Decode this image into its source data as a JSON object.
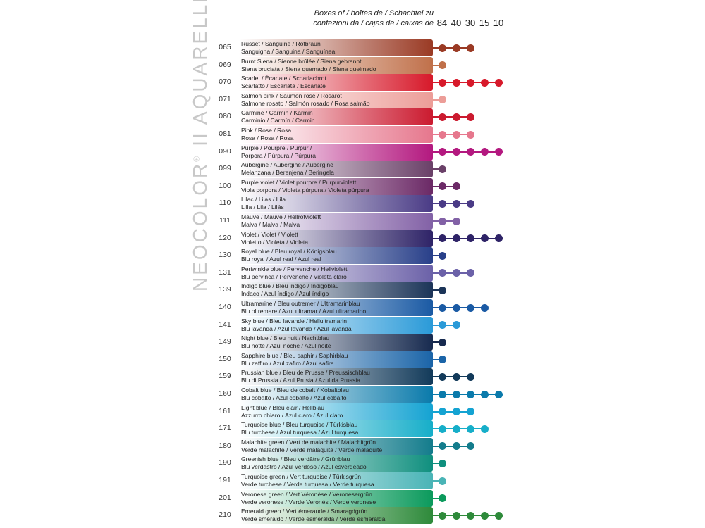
{
  "brand": {
    "name": "NEOCOLOR",
    "mark": "®",
    "suffix": "II AQUARELLE"
  },
  "header": {
    "line1": "Boxes of / boîtes de / Schachtel zu",
    "line2": "confezioni da / cajas de / caixas de"
  },
  "box_sizes": [
    "84",
    "40",
    "30",
    "15",
    "10"
  ],
  "colors": [
    {
      "code": "065",
      "line1": "Russet / Sanguine / Rotbraun",
      "line2": "Sanguigna / Sanguina / Sanguínea",
      "color": "#9a3a24",
      "dots": 3
    },
    {
      "code": "069",
      "line1": "Burnt Siena / Sienne brûlée / Siena gebrannt",
      "line2": "Siena bruciata / Siena quemado / Siena queimado",
      "color": "#c0704a",
      "dots": 1
    },
    {
      "code": "070",
      "line1": "Scarlet / Écarlate / Scharlachrot",
      "line2": "Scarlatto / Escarlata / Escarlate",
      "color": "#d7192a",
      "dots": 5
    },
    {
      "code": "071",
      "line1": "Salmon pink / Saumon rosé / Rosarot",
      "line2": "Salmone rosato / Salmón rosado / Rosa salmão",
      "color": "#ec9d98",
      "dots": 1
    },
    {
      "code": "080",
      "line1": "Carmine / Carmin / Karmin",
      "line2": "Carminio / Carmín / Carmin",
      "color": "#cb1a2f",
      "dots": 3
    },
    {
      "code": "081",
      "line1": "Pink / Rose / Rosa",
      "line2": "Rosa / Rosa / Rosa",
      "color": "#e6778d",
      "dots": 3
    },
    {
      "code": "090",
      "line1": "Purple / Pourpre / Purpur /",
      "line2": "Porpora / Púrpura / Púrpura",
      "color": "#b3187f",
      "dots": 5
    },
    {
      "code": "099",
      "line1": "Aubergine / Aubergine / Aubergine",
      "line2": "Melanzana / Berenjena / Beringela",
      "color": "#6a4068",
      "dots": 1
    },
    {
      "code": "100",
      "line1": "Purple violet / Violet pourpre / Purpurviolett",
      "line2": "Viola porpora / Violeta púrpura / Violeta púrpura",
      "color": "#6b2966",
      "dots": 2
    },
    {
      "code": "110",
      "line1": "Lilac / Lilas / Lila",
      "line2": "Lilla / Lila / Lilás",
      "color": "#4a3b86",
      "dots": 3
    },
    {
      "code": "111",
      "line1": "Mauve / Mauve / Hellrotviolett",
      "line2": "Malva / Malva / Malva",
      "color": "#8261a6",
      "dots": 2
    },
    {
      "code": "120",
      "line1": "Violet / Violet / Violett",
      "line2": "Violetto / Violeta / Violeta",
      "color": "#2e2367",
      "dots": 5
    },
    {
      "code": "130",
      "line1": "Royal blue / Bleu royal / Königsblau",
      "line2": "Blu royal / Azul real / Azul real",
      "color": "#283f89",
      "dots": 1
    },
    {
      "code": "131",
      "line1": "Periwinkle blue / Pervenche / Hellviolett",
      "line2": "Blu pervinca / Pervenche / Violeta claro",
      "color": "#6b61a8",
      "dots": 3
    },
    {
      "code": "139",
      "line1": "Indigo blue / Bleu indigo / Indigoblau",
      "line2": "Indaco / Azul índigo / Azul índigo",
      "color": "#1b3458",
      "dots": 1
    },
    {
      "code": "140",
      "line1": "Ultramarine / Bleu outremer / Ultramarinblau",
      "line2": "Blu oltremare / Azul ultramar / Azul ultramarino",
      "color": "#1a5aa4",
      "dots": 4
    },
    {
      "code": "141",
      "line1": "Sky blue / Bleu lavande / Hellultramarin",
      "line2": "Blu lavanda / Azul lavanda / Azul lavanda",
      "color": "#2a9ad8",
      "dots": 2
    },
    {
      "code": "149",
      "line1": "Night blue / Bleu nuit / Nachtblau",
      "line2": "Blu notte / Azul noche / Azul noite",
      "color": "#172a4f",
      "dots": 1
    },
    {
      "code": "150",
      "line1": "Sapphire blue / Bleu saphir / Saphirblau",
      "line2": "Blu zaffiro / Azul zafiro / Azul safira",
      "color": "#1a64a8",
      "dots": 1
    },
    {
      "code": "159",
      "line1": "Prussian blue / Bleu de Prusse / Preussischblau",
      "line2": "Blu di Prussia / Azul Prusia / Azul da Prussia",
      "color": "#123a5a",
      "dots": 3
    },
    {
      "code": "160",
      "line1": "Cobalt blue / Bleu de cobalt / Kobaltblau",
      "line2": "Blu cobalto / Azul cobalto / Azul cobalto",
      "color": "#0a7aab",
      "dots": 5
    },
    {
      "code": "161",
      "line1": "Light blue / Bleu clair / Hellblau",
      "line2": "Azzurro chiaro / Azul claro / Azul claro",
      "color": "#14a3d2",
      "dots": 3
    },
    {
      "code": "171",
      "line1": "Turquoise blue / Bleu turquoise / Türkisblau",
      "line2": "Blu turchese / Azul turquesa / Azul turquesa",
      "color": "#16aec9",
      "dots": 4
    },
    {
      "code": "180",
      "line1": "Malachite green / Vert de malachite / Malachitgrün",
      "line2": "Verde malachite / Verde malaquita / Verde malaquite",
      "color": "#137c8c",
      "dots": 3
    },
    {
      "code": "190",
      "line1": "Greenish blue / Bleu verdâtre / Grünblau",
      "line2": "Blu verdastro / Azul verdoso / Azul esverdeado",
      "color": "#0f8f7e",
      "dots": 1
    },
    {
      "code": "191",
      "line1": "Turquoise green / Vert turquoise / Türkisgrün",
      "line2": "Verde turchese / Verde turquesa / Verde turquesa",
      "color": "#49b4b6",
      "dots": 1
    },
    {
      "code": "201",
      "line1": "Veronese green / Vert Véronèse / Veronesergrün",
      "line2": "Verde veronese / Verde Veronés / Verde veronese",
      "color": "#0b9a5c",
      "dots": 1
    },
    {
      "code": "210",
      "line1": "Emerald green / Vert émeraude / Smaragdgrün",
      "line2": "Verde smeraldo / Verde esmeralda / Verde esmeralda",
      "color": "#2e8a3a",
      "dots": 5
    }
  ]
}
